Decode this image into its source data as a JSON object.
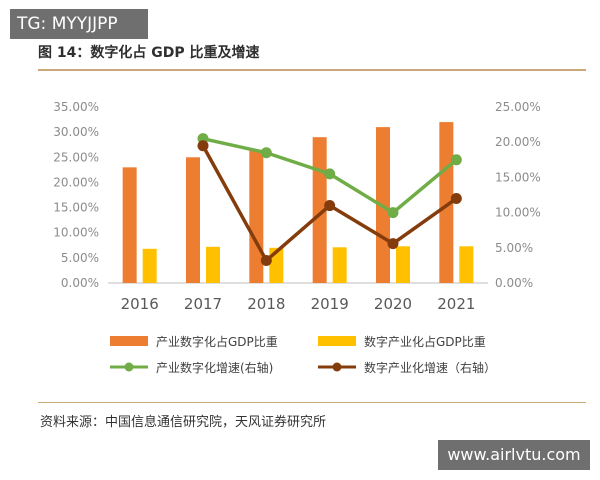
{
  "tag_text": "TG: MYYJJPP",
  "title": "图 14：数字化占 GDP 比重及增速",
  "source": "资料来源：中国信息通信研究院，天风证券研究所",
  "watermark": "www.airlvtu.com",
  "chart_data": {
    "type": "bar",
    "categories": [
      "2016",
      "2017",
      "2018",
      "2019",
      "2020",
      "2021"
    ],
    "y_left": {
      "ticks": [
        "0.00%",
        "5.00%",
        "10.00%",
        "15.00%",
        "20.00%",
        "25.00%",
        "30.00%",
        "35.00%"
      ],
      "range": [
        0,
        35
      ]
    },
    "y_right": {
      "ticks": [
        "0.00%",
        "5.00%",
        "10.00%",
        "15.00%",
        "20.00%",
        "25.00%"
      ],
      "range": [
        0,
        25
      ]
    },
    "series": [
      {
        "name": "产业数字化占GDP比重",
        "kind": "bar",
        "axis": "left",
        "color": "#ed7d31",
        "values": [
          23.0,
          25.0,
          26.5,
          29.0,
          31.0,
          32.0
        ]
      },
      {
        "name": "数字产业化占GDP比重",
        "kind": "bar",
        "axis": "left",
        "color": "#ffc000",
        "values": [
          6.8,
          7.2,
          7.0,
          7.1,
          7.3,
          7.3
        ]
      },
      {
        "name": "产业数字化增速(右轴)",
        "kind": "line",
        "axis": "right",
        "color": "#70ad47",
        "values": [
          null,
          20.5,
          18.5,
          15.5,
          10.0,
          17.5
        ]
      },
      {
        "name": "数字产业化增速（右轴）",
        "kind": "line",
        "axis": "right",
        "color": "#843c0c",
        "values": [
          null,
          19.5,
          3.2,
          11.0,
          5.6,
          12.0
        ]
      }
    ],
    "grid": false,
    "legend_position": "bottom"
  }
}
